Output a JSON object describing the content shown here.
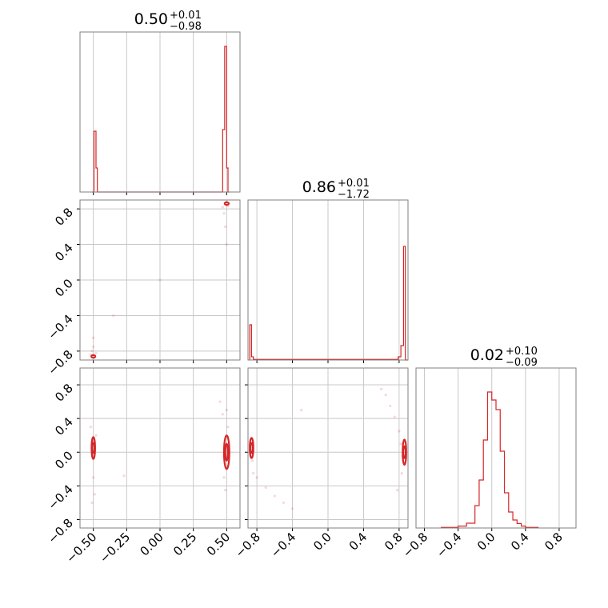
{
  "chart_data": {
    "type": "corner",
    "series_color": "#d62728",
    "grid": true,
    "parameters": [
      {
        "title": {
          "median": "0.50",
          "plus": "+0.01",
          "minus": "−0.98"
        },
        "range": [
          -0.6,
          0.6
        ],
        "ticks": [
          -0.5,
          -0.25,
          0.0,
          0.25,
          0.5
        ],
        "tick_labels": [
          "−0.50",
          "−0.25",
          "0.00",
          "0.25",
          "0.50"
        ],
        "histogram": {
          "bin_edges": [
            -0.51,
            -0.495,
            -0.48,
            -0.47,
            0.47,
            0.485,
            0.5,
            0.51,
            0.52
          ],
          "counts": [
            0,
            0.38,
            0.15,
            0,
            0.39,
            0.91,
            0.15,
            0
          ]
        }
      },
      {
        "title": {
          "median": "0.86",
          "plus": "+0.01",
          "minus": "−1.72"
        },
        "range": [
          -0.9,
          0.9
        ],
        "ticks": [
          -0.8,
          -0.4,
          0.0,
          0.4,
          0.8
        ],
        "tick_labels": [
          "−0.8",
          "−0.4",
          "0.0",
          "0.4",
          "0.8"
        ],
        "histogram": {
          "bin_edges": [
            -0.88,
            -0.86,
            -0.84,
            0.79,
            0.82,
            0.85,
            0.87,
            0.9
          ],
          "counts": [
            0.22,
            0.02,
            0.004,
            0.02,
            0.09,
            0.71,
            0.0
          ]
        }
      },
      {
        "title": {
          "median": "0.02",
          "plus": "+0.10",
          "minus": "−0.09"
        },
        "range": [
          -0.9,
          1.0
        ],
        "ticks": [
          -0.8,
          -0.4,
          0.0,
          0.4,
          0.8
        ],
        "tick_labels": [
          "−0.8",
          "−0.4",
          "0.0",
          "0.4",
          "0.8"
        ],
        "histogram": {
          "bin_edges": [
            -0.6,
            -0.4,
            -0.3,
            -0.2,
            -0.15,
            -0.1,
            -0.05,
            0.0,
            0.05,
            0.1,
            0.15,
            0.2,
            0.25,
            0.3,
            0.35,
            0.4,
            0.55
          ],
          "counts": [
            0.004,
            0.012,
            0.03,
            0.14,
            0.3,
            0.55,
            0.85,
            0.8,
            0.74,
            0.48,
            0.22,
            0.1,
            0.05,
            0.028,
            0.012,
            0.004
          ]
        }
      }
    ],
    "pairs": [
      {
        "x_param": 0,
        "y_param": 1,
        "contours": [
          {
            "x": -0.5,
            "y": -0.86,
            "rx": 0.015,
            "ry": 0.015
          },
          {
            "x": 0.5,
            "y": 0.86,
            "rx": 0.015,
            "ry": 0.015
          }
        ],
        "samples": [
          [
            -0.52,
            -0.84
          ],
          [
            -0.51,
            -0.8
          ],
          [
            -0.5,
            -0.75
          ],
          [
            -0.5,
            -0.65
          ],
          [
            -0.48,
            -0.82
          ],
          [
            -0.35,
            -0.4
          ],
          [
            0.0,
            0.0
          ],
          [
            0.48,
            0.75
          ],
          [
            0.49,
            0.6
          ],
          [
            0.5,
            0.4
          ],
          [
            0.47,
            0.82
          ],
          [
            0.51,
            0.83
          ],
          [
            0.52,
            0.86
          ]
        ]
      },
      {
        "x_param": 0,
        "y_param": 2,
        "contours": [
          {
            "x": -0.5,
            "y": 0.05,
            "rx": 0.013,
            "ry": 0.13
          },
          {
            "x": -0.5,
            "y": 0.05,
            "rx": 0.007,
            "ry": 0.06
          },
          {
            "x": 0.5,
            "y": 0.0,
            "rx": 0.02,
            "ry": 0.2
          },
          {
            "x": 0.5,
            "y": 0.0,
            "rx": 0.01,
            "ry": 0.1
          }
        ],
        "samples": [
          [
            -0.52,
            0.3
          ],
          [
            -0.5,
            -0.3
          ],
          [
            -0.49,
            -0.5
          ],
          [
            -0.51,
            -0.6
          ],
          [
            -0.48,
            0.2
          ],
          [
            -0.27,
            -0.28
          ],
          [
            0.45,
            0.6
          ],
          [
            0.47,
            0.45
          ],
          [
            0.48,
            -0.3
          ],
          [
            0.49,
            -0.45
          ],
          [
            0.51,
            0.3
          ],
          [
            0.5,
            0.5
          ]
        ]
      },
      {
        "x_param": 1,
        "y_param": 2,
        "contours": [
          {
            "x": -0.86,
            "y": 0.05,
            "rx": 0.02,
            "ry": 0.12
          },
          {
            "x": -0.86,
            "y": 0.05,
            "rx": 0.01,
            "ry": 0.06
          },
          {
            "x": 0.86,
            "y": 0.0,
            "rx": 0.02,
            "ry": 0.15
          },
          {
            "x": 0.86,
            "y": 0.0,
            "rx": 0.01,
            "ry": 0.07
          }
        ],
        "samples": [
          [
            -0.85,
            -0.1
          ],
          [
            -0.84,
            -0.25
          ],
          [
            -0.8,
            -0.3
          ],
          [
            -0.7,
            -0.42
          ],
          [
            -0.6,
            -0.52
          ],
          [
            -0.5,
            -0.6
          ],
          [
            -0.4,
            -0.67
          ],
          [
            -0.3,
            0.5
          ],
          [
            0.6,
            0.75
          ],
          [
            0.65,
            0.68
          ],
          [
            0.7,
            0.55
          ],
          [
            0.75,
            0.42
          ],
          [
            0.8,
            0.25
          ],
          [
            0.82,
            0.1
          ],
          [
            0.84,
            -0.05
          ],
          [
            0.78,
            -0.45
          ],
          [
            0.83,
            -0.25
          ]
        ]
      }
    ]
  }
}
